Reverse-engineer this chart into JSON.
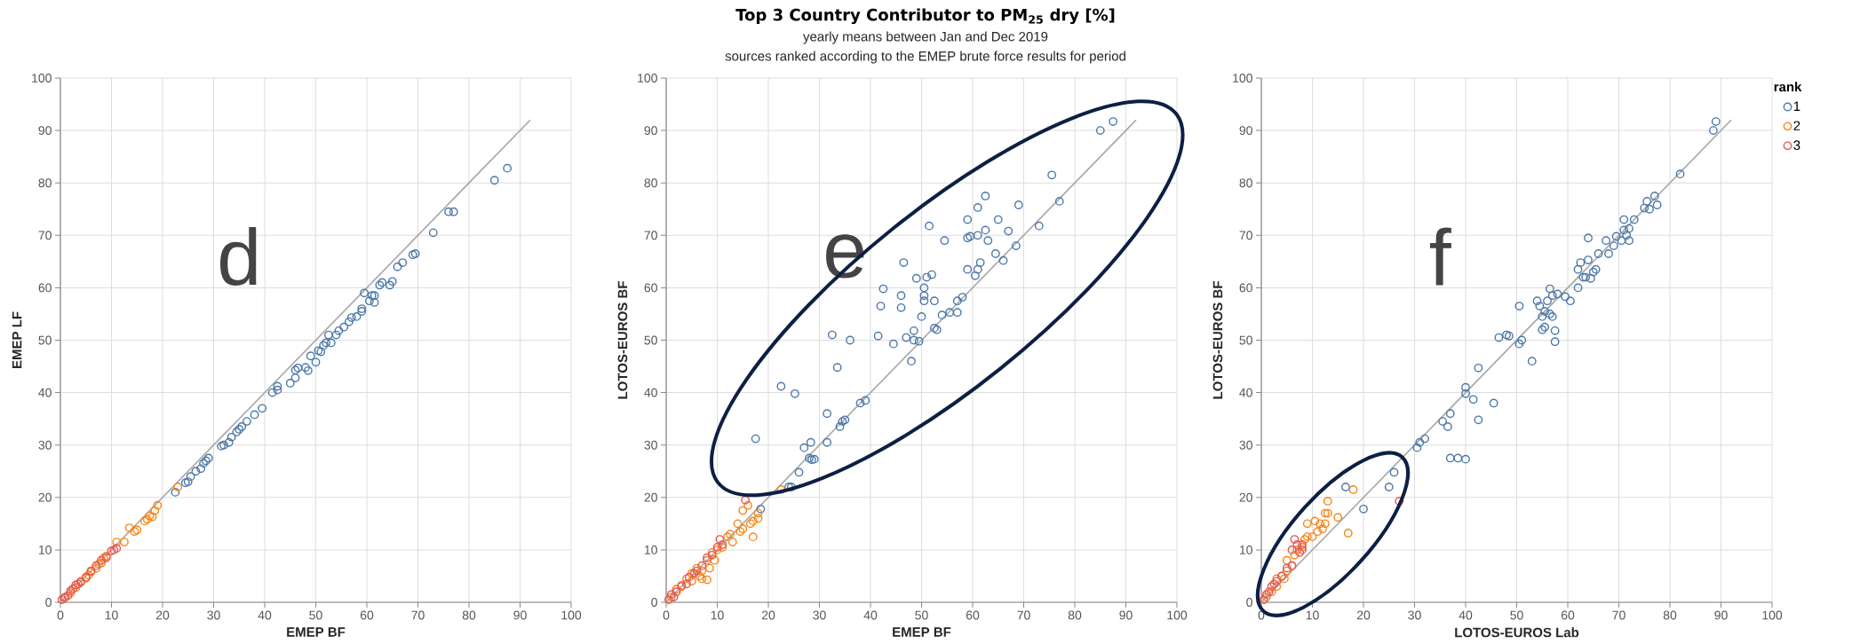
{
  "chart_data": [
    {
      "type": "scatter",
      "xlabel": "EMEP BF",
      "ylabel": "EMEP LF",
      "xlim": [
        0,
        100
      ],
      "ylim": [
        0,
        100
      ],
      "xticks": [
        0,
        10,
        20,
        30,
        40,
        50,
        60,
        70,
        80,
        90,
        100
      ],
      "yticks": [
        0,
        10,
        20,
        30,
        40,
        50,
        60,
        70,
        80,
        90,
        100
      ],
      "grid": true,
      "annotations": [
        "d"
      ],
      "series": [
        {
          "color": "#4c78a8",
          "marker": "circle",
          "x": [
            22.5,
            24.5,
            25,
            25.5,
            26.5,
            27.5,
            28,
            28.5,
            29,
            31.5,
            32,
            33,
            33.5,
            34.5,
            35,
            35.5,
            36.5,
            38,
            39.5,
            41.5,
            42.5,
            42.5,
            45,
            46,
            46,
            46.5,
            48,
            48.5,
            49,
            50,
            50.5,
            51,
            51.5,
            52,
            52.5,
            53,
            54,
            54.5,
            55.5,
            56.5,
            57,
            58,
            59,
            59,
            59.5,
            60.5,
            61,
            61.5,
            61.5,
            62.5,
            63,
            64.5,
            65,
            66,
            67,
            69,
            69.5,
            73,
            76,
            77,
            85,
            87.5
          ],
          "values": [
            21,
            22.8,
            23,
            24,
            25,
            25.5,
            26.5,
            27,
            27.5,
            29.8,
            30,
            30.5,
            31.5,
            32.5,
            33,
            33.5,
            34.5,
            35.8,
            37,
            40,
            40.5,
            41.2,
            41.8,
            42.8,
            44.3,
            44.7,
            44.8,
            44.2,
            47,
            45.8,
            48,
            47.8,
            49,
            49.5,
            51,
            49.5,
            51,
            51.8,
            52.5,
            53.5,
            54.3,
            54.5,
            55.5,
            56,
            59,
            57.5,
            58.5,
            57.2,
            58.5,
            60.5,
            61,
            60.5,
            61.2,
            64,
            64.8,
            66.3,
            66.5,
            70.5,
            74.5,
            74.5,
            80.5,
            82.8
          ]
        },
        {
          "color": "#f58518",
          "marker": "circle",
          "x": [
            1,
            2,
            3,
            4,
            5,
            5.5,
            6,
            7,
            7.5,
            8,
            8.5,
            9,
            11,
            12.5,
            13.5,
            14.5,
            15,
            16.5,
            17,
            17.5,
            18,
            18.5,
            19,
            23
          ],
          "values": [
            1,
            1.8,
            2.8,
            3.8,
            4.6,
            5.2,
            5.8,
            6.5,
            7.3,
            7.5,
            8.5,
            8.8,
            11.5,
            11.5,
            14.2,
            13.5,
            13.8,
            15.5,
            15.8,
            16.5,
            16.3,
            17.5,
            18.5,
            22
          ]
        },
        {
          "color": "#e45756",
          "marker": "circle",
          "x": [
            0.3,
            0.8,
            1.5,
            2,
            2.5,
            3,
            3.5,
            4,
            5,
            6,
            7,
            8,
            9,
            10,
            10.5,
            11
          ],
          "values": [
            0.5,
            0.9,
            1.3,
            2.2,
            2.6,
            3.3,
            3.5,
            4,
            4.8,
            6,
            7,
            8,
            8.5,
            9.8,
            10,
            10.3
          ]
        },
        {
          "type": "line",
          "color": "#a6a6a6",
          "x": [
            0,
            92
          ],
          "values": [
            0,
            92
          ]
        }
      ]
    },
    {
      "type": "scatter",
      "title": "Top 3 Country Contributor to PM$_{25}$ dry [%]",
      "subtitle": "yearly means between Jan and Dec 2019",
      "xlabel": "EMEP BF",
      "ylabel": "LOTOS-EUROS BF",
      "xlim": [
        0,
        100
      ],
      "ylim": [
        0,
        100
      ],
      "xticks": [
        0,
        10,
        20,
        30,
        40,
        50,
        60,
        70,
        80,
        90,
        100
      ],
      "yticks": [
        0,
        10,
        20,
        30,
        40,
        50,
        60,
        70,
        80,
        90,
        100
      ],
      "grid": true,
      "annotations": [
        "sources ranked according to the EMEP brute force results for period",
        "e"
      ],
      "series": [
        {
          "color": "#4c78a8",
          "marker": "circle",
          "x": [
            17.5,
            18.5,
            22.5,
            24,
            24.5,
            25.2,
            26,
            27,
            28,
            28.3,
            28.5,
            29,
            31.5,
            31.5,
            32.5,
            33.5,
            34,
            34.5,
            35,
            36,
            38,
            39,
            41.5,
            42,
            42.5,
            44.5,
            46,
            46,
            46.5,
            47,
            48,
            48.5,
            48.5,
            49,
            49.5,
            50,
            50.5,
            50.5,
            50.5,
            51,
            51.5,
            52,
            52.5,
            52.5,
            53,
            54,
            54.5,
            55.5,
            57,
            57,
            58,
            59,
            59,
            59.5,
            59,
            60.5,
            61,
            61,
            61,
            61.5,
            62.5,
            62.5,
            63,
            64.5,
            65,
            66,
            67,
            68.5,
            69,
            73,
            75.5,
            77,
            85,
            87.5
          ],
          "values": [
            31.2,
            17.8,
            41.2,
            22,
            22,
            39.8,
            24.8,
            29.5,
            27.5,
            30.5,
            27.2,
            27.3,
            36,
            30.5,
            51,
            44.8,
            33.5,
            34.5,
            34.8,
            50,
            38,
            38.5,
            50.8,
            56.5,
            59.8,
            49.3,
            56.2,
            58.5,
            64.8,
            50.5,
            46,
            51.8,
            50,
            61.8,
            49.8,
            54.5,
            57.5,
            58.5,
            60,
            62,
            71.8,
            62.5,
            57.5,
            52.3,
            52,
            54.8,
            69,
            55.3,
            57.5,
            55.3,
            58.2,
            73,
            69.5,
            69.8,
            63.5,
            62.3,
            75.3,
            63.5,
            70,
            64.8,
            71,
            77.5,
            69,
            66.5,
            73,
            65.2,
            70.8,
            68,
            75.8,
            71.8,
            81.5,
            76.5,
            90,
            91.7
          ]
        },
        {
          "color": "#f58518",
          "marker": "circle",
          "x": [
            1,
            2,
            3,
            4,
            5,
            5,
            6,
            6.5,
            7,
            7,
            8,
            8,
            8.5,
            9,
            9.5,
            10,
            11,
            12,
            12.5,
            13,
            14,
            14.5,
            15,
            15,
            16,
            16.5,
            17,
            17,
            18,
            18,
            19,
            22.5
          ],
          "values": [
            1,
            2.5,
            3,
            4.5,
            4,
            5.5,
            6.5,
            5,
            4.5,
            6,
            4.3,
            8,
            6.5,
            9.5,
            8,
            10,
            10.5,
            12.5,
            13,
            11.5,
            15,
            13.5,
            14,
            17.5,
            18.5,
            15,
            12.5,
            15.5,
            16,
            17,
            null,
            21.5
          ]
        },
        {
          "color": "#e45756",
          "marker": "circle",
          "x": [
            0.5,
            1,
            1.5,
            2,
            3,
            4,
            4.5,
            5.5,
            6,
            7,
            8,
            9,
            10,
            10.5,
            11,
            15.5
          ],
          "values": [
            0.5,
            1.5,
            1,
            2,
            3.2,
            3.5,
            4.8,
            5.5,
            6,
            7,
            8.5,
            9,
            10.5,
            12,
            11,
            19.5
          ]
        },
        {
          "type": "line",
          "color": "#a6a6a6",
          "x": [
            0,
            92
          ],
          "values": [
            0,
            92
          ]
        }
      ]
    },
    {
      "type": "scatter",
      "xlabel": "LOTOS-EUROS Lab",
      "ylabel": "LOTOS-EUROS BF",
      "xlim": [
        0,
        100
      ],
      "ylim": [
        0,
        100
      ],
      "xticks": [
        0,
        10,
        20,
        30,
        40,
        50,
        60,
        70,
        80,
        90,
        100
      ],
      "yticks": [
        0,
        10,
        20,
        30,
        40,
        50,
        60,
        70,
        80,
        90,
        100
      ],
      "grid": true,
      "legend": "right",
      "legend_title": "rank",
      "annotations": [
        "f"
      ],
      "series": [
        {
          "name": "1",
          "color": "#4c78a8",
          "marker": "circle",
          "x": [
            16.5,
            20,
            25,
            26,
            30.5,
            31,
            32,
            35.5,
            36.5,
            37,
            37,
            38.5,
            40,
            40,
            40,
            41.5,
            42.5,
            42.5,
            45.5,
            46.5,
            48,
            48.5,
            50.5,
            51,
            50.5,
            53,
            54,
            54.5,
            55,
            55,
            55.5,
            55.5,
            56,
            56.5,
            56.5,
            57,
            57,
            57.5,
            57.5,
            58,
            59.5,
            60.5,
            62,
            62,
            62.5,
            63,
            63.5,
            64,
            64,
            64.5,
            65,
            65.5,
            66,
            67.5,
            68,
            69,
            69.5,
            70.5,
            71,
            71,
            71.5,
            72,
            72,
            73,
            75,
            75.5,
            76,
            77,
            77.5,
            82,
            88.5,
            89
          ],
          "values": [
            22,
            17.8,
            22,
            24.8,
            29.5,
            30.5,
            31.2,
            34.5,
            33.5,
            36,
            27.5,
            27.5,
            27.3,
            41,
            39.8,
            38.7,
            34.8,
            44.7,
            38,
            50.5,
            51,
            50.8,
            49.3,
            50,
            56.5,
            46,
            57.5,
            56.5,
            52,
            54.5,
            52.5,
            55.5,
            57.5,
            55,
            59.8,
            54.5,
            58.5,
            51.8,
            49.7,
            58.8,
            58.3,
            57.5,
            63.5,
            60,
            64.8,
            62,
            62,
            65.3,
            69.5,
            61.8,
            63,
            63.5,
            66.5,
            69,
            66.5,
            68,
            69.8,
            69,
            73,
            71,
            70,
            71.3,
            69,
            73,
            75.2,
            76.5,
            75,
            77.5,
            75.8,
            81.7,
            90,
            91.7
          ]
        },
        {
          "name": "2",
          "color": "#f58518",
          "marker": "circle",
          "x": [
            1,
            2,
            3,
            3,
            4,
            4.5,
            5,
            5,
            6,
            6.5,
            7,
            8,
            8.5,
            9,
            9,
            10,
            10.5,
            11,
            11.5,
            12,
            12.5,
            12.5,
            13,
            13,
            15,
            17,
            18
          ],
          "values": [
            1,
            2,
            3,
            4.5,
            5,
            4.5,
            6,
            8,
            7,
            9,
            10,
            10.5,
            12,
            12.5,
            15,
            12.5,
            15.5,
            13.5,
            15,
            14,
            15,
            17,
            17,
            19.3,
            16.2,
            13.2,
            21.5
          ]
        },
        {
          "name": "3",
          "color": "#e45756",
          "marker": "circle",
          "x": [
            0.5,
            1,
            1.5,
            2,
            2.5,
            3,
            4,
            5,
            6,
            6,
            6.5,
            7,
            7.5,
            8,
            8,
            27
          ],
          "values": [
            0.5,
            1.5,
            2,
            3,
            3.5,
            4,
            5,
            6.5,
            7,
            10,
            12,
            11,
            9.5,
            11,
            10,
            19.3
          ]
        },
        {
          "type": "line",
          "color": "#a6a6a6",
          "x": [
            0,
            92
          ],
          "values": [
            0,
            92
          ]
        }
      ]
    }
  ]
}
